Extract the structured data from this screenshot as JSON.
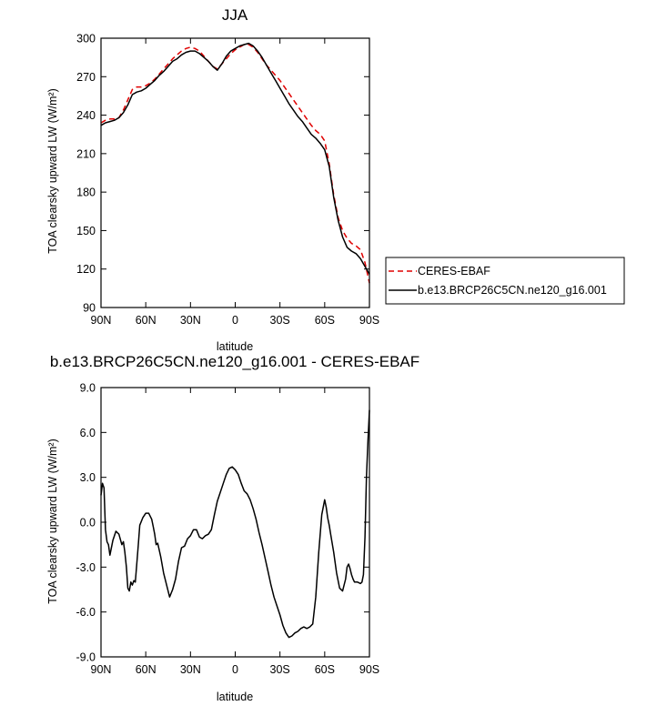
{
  "chart_data": [
    {
      "type": "line",
      "title": "JJA",
      "xlabel": "latitude",
      "ylabel": "TOA clearsky upward LW (W/m²)",
      "x_direction": "north-to-south",
      "xlim": [
        90,
        -90
      ],
      "ylim": [
        90,
        300
      ],
      "xticks": [
        90,
        60,
        30,
        0,
        -30,
        -60,
        -90
      ],
      "xtick_labels": [
        "90N",
        "60N",
        "30N",
        "0",
        "30S",
        "60S",
        "90S"
      ],
      "yticks": [
        90,
        120,
        150,
        180,
        210,
        240,
        270,
        300
      ],
      "ytick_labels": [
        "90",
        "120",
        "150",
        "180",
        "210",
        "240",
        "270",
        "300"
      ],
      "legend": {
        "placement": "outside-right",
        "entries": [
          "CERES-EBAF",
          "b.e13.BRCP26C5CN.ne120_g16.001"
        ]
      },
      "series": [
        {
          "name": "CERES-EBAF",
          "color": "#e00000",
          "dash": "dashed",
          "x": [
            90,
            87,
            84,
            81,
            78,
            75,
            72,
            69,
            66,
            63,
            60,
            57,
            54,
            51,
            48,
            45,
            42,
            39,
            36,
            33,
            30,
            27,
            24,
            21,
            18,
            15,
            12,
            9,
            6,
            3,
            0,
            -3,
            -6,
            -9,
            -12,
            -15,
            -18,
            -21,
            -24,
            -27,
            -30,
            -33,
            -36,
            -39,
            -42,
            -45,
            -48,
            -51,
            -54,
            -57,
            -60,
            -63,
            -66,
            -69,
            -72,
            -75,
            -78,
            -81,
            -84,
            -87,
            -90
          ],
          "y": [
            234,
            236,
            237,
            237,
            238,
            244,
            252,
            260,
            262,
            262,
            263,
            265,
            268,
            272,
            276,
            280,
            284,
            287,
            290,
            292,
            293,
            292,
            290,
            286,
            282,
            278,
            276,
            280,
            284,
            288,
            291,
            293,
            295,
            295,
            293,
            289,
            284,
            279,
            275,
            271,
            267,
            262,
            257,
            252,
            247,
            242,
            237,
            232,
            228,
            225,
            220,
            202,
            178,
            160,
            150,
            144,
            140,
            138,
            135,
            125,
            109
          ]
        },
        {
          "name": "b.e13.BRCP26C5CN.ne120_g16.001",
          "color": "#000000",
          "dash": "solid",
          "x": [
            90,
            87,
            84,
            81,
            78,
            75,
            72,
            69,
            66,
            63,
            60,
            57,
            54,
            51,
            48,
            45,
            42,
            39,
            36,
            33,
            30,
            27,
            24,
            21,
            18,
            15,
            12,
            9,
            6,
            3,
            0,
            -3,
            -6,
            -9,
            -12,
            -15,
            -18,
            -21,
            -24,
            -27,
            -30,
            -33,
            -36,
            -39,
            -42,
            -45,
            -48,
            -51,
            -54,
            -57,
            -60,
            -63,
            -66,
            -69,
            -72,
            -75,
            -78,
            -81,
            -84,
            -87,
            -90
          ],
          "y": [
            232,
            234,
            235,
            236,
            238,
            242,
            248,
            256,
            258,
            259,
            261,
            264,
            267,
            271,
            274,
            278,
            282,
            284,
            287,
            289,
            290,
            290,
            288,
            285,
            282,
            278,
            275,
            280,
            286,
            290,
            292,
            294,
            295,
            296,
            294,
            290,
            285,
            279,
            273,
            267,
            261,
            255,
            249,
            244,
            239,
            235,
            230,
            225,
            222,
            218,
            213,
            200,
            176,
            158,
            145,
            137,
            134,
            132,
            128,
            122,
            116
          ]
        }
      ]
    },
    {
      "type": "line",
      "title": "b.e13.BRCP26C5CN.ne120_g16.001 - CERES-EBAF",
      "xlabel": "latitude",
      "ylabel": "TOA clearsky upward LW (W/m²)",
      "x_direction": "north-to-south",
      "xlim": [
        90,
        -90
      ],
      "ylim": [
        -9,
        9
      ],
      "xticks": [
        90,
        60,
        30,
        0,
        -30,
        -60,
        -90
      ],
      "xtick_labels": [
        "90N",
        "60N",
        "30N",
        "0",
        "30S",
        "60S",
        "90S"
      ],
      "yticks": [
        -9,
        -6,
        -3,
        0,
        3,
        6,
        9
      ],
      "ytick_labels": [
        "-9.0",
        "-6.0",
        "-3.0",
        "0.0",
        "3.0",
        "6.0",
        "9.0"
      ],
      "series": [
        {
          "color": "#000000",
          "dash": "solid",
          "x": [
            90,
            89,
            88,
            87,
            86,
            85,
            84,
            82,
            80,
            78,
            76,
            75,
            74,
            73,
            72,
            71,
            70,
            69,
            68,
            67,
            66,
            65,
            64,
            62,
            60,
            58,
            56,
            55,
            54,
            53,
            52,
            50,
            48,
            46,
            44,
            42,
            40,
            38,
            36,
            34,
            32,
            30,
            28,
            26,
            24,
            22,
            20,
            18,
            16,
            14,
            12,
            10,
            8,
            6,
            4,
            2,
            0,
            -2,
            -4,
            -6,
            -8,
            -10,
            -12,
            -14,
            -16,
            -18,
            -20,
            -22,
            -24,
            -26,
            -28,
            -30,
            -32,
            -34,
            -36,
            -38,
            -40,
            -42,
            -44,
            -46,
            -48,
            -50,
            -52,
            -54,
            -56,
            -58,
            -60,
            -61,
            -62,
            -63,
            -64,
            -66,
            -68,
            -70,
            -72,
            -74,
            -75,
            -76,
            -77,
            -78,
            -79,
            -80,
            -82,
            -84,
            -85,
            -86,
            -87,
            -88,
            -89,
            -90
          ],
          "y": [
            1.8,
            2.6,
            2.3,
            -0.5,
            -1.3,
            -1.5,
            -2.2,
            -1.2,
            -0.6,
            -0.8,
            -1.5,
            -1.3,
            -2.0,
            -3.0,
            -4.4,
            -4.6,
            -4.0,
            -4.2,
            -3.9,
            -4.0,
            -2.8,
            -1.5,
            -0.2,
            0.3,
            0.6,
            0.6,
            0.2,
            -0.3,
            -0.8,
            -1.5,
            -1.4,
            -2.3,
            -3.4,
            -4.2,
            -5.0,
            -4.5,
            -3.8,
            -2.6,
            -1.7,
            -1.6,
            -1.1,
            -0.9,
            -0.5,
            -0.5,
            -1.0,
            -1.1,
            -0.9,
            -0.8,
            -0.5,
            0.5,
            1.4,
            2.0,
            2.6,
            3.2,
            3.6,
            3.7,
            3.5,
            3.2,
            2.6,
            2.1,
            1.9,
            1.5,
            0.9,
            0.2,
            -0.7,
            -1.5,
            -2.4,
            -3.3,
            -4.2,
            -5.0,
            -5.6,
            -6.2,
            -6.9,
            -7.4,
            -7.7,
            -7.6,
            -7.4,
            -7.3,
            -7.1,
            -7.0,
            -7.1,
            -7.0,
            -6.8,
            -5.0,
            -2.0,
            0.5,
            1.5,
            1.0,
            0.3,
            -0.2,
            -0.8,
            -2.0,
            -3.4,
            -4.4,
            -4.6,
            -3.8,
            -3.0,
            -2.8,
            -3.1,
            -3.5,
            -3.8,
            -4.0,
            -4.0,
            -4.1,
            -4.0,
            -3.5,
            -1.0,
            3.0,
            5.5,
            7.5
          ]
        }
      ]
    }
  ]
}
